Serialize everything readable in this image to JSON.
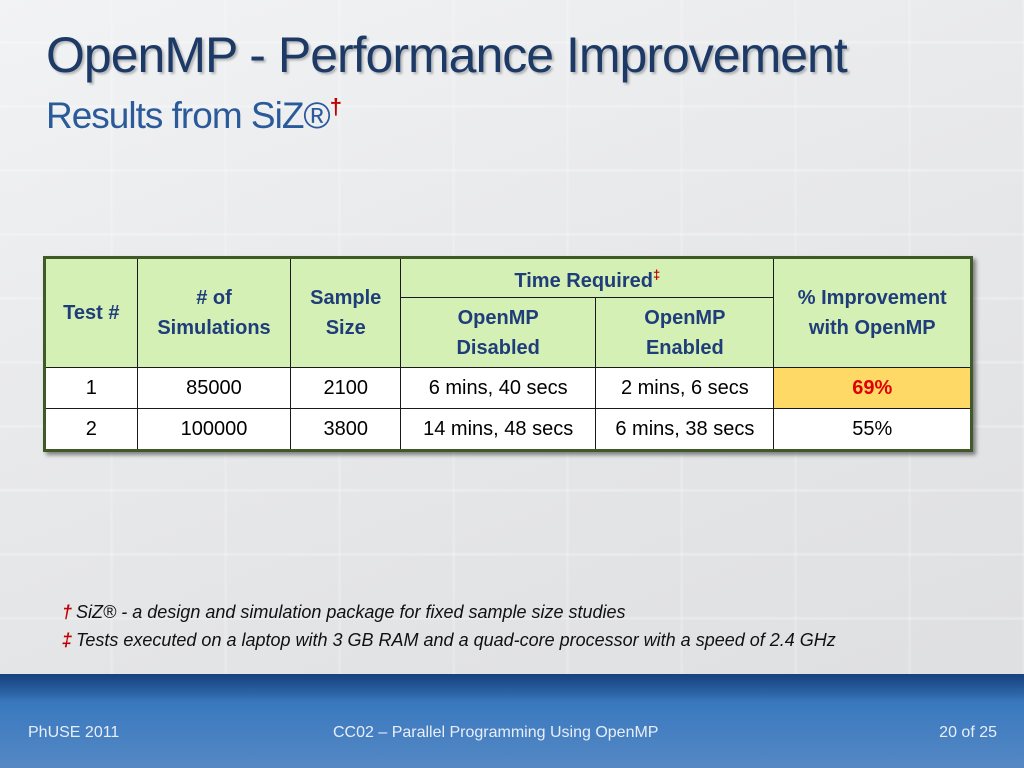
{
  "slide": {
    "title": "OpenMP - Performance Improvement",
    "subtitle": "Results from SiZ®",
    "subtitle_mark": "†"
  },
  "table": {
    "headers": {
      "test": "Test #",
      "simulations_line1": "# of",
      "simulations_line2": "Simulations",
      "sample_line1": "Sample",
      "sample_line2": "Size",
      "time_required": "Time Required",
      "time_required_mark": "‡",
      "disabled_line1": "OpenMP",
      "disabled_line2": "Disabled",
      "enabled_line1": "OpenMP",
      "enabled_line2": "Enabled",
      "improvement_line1": "% Improvement",
      "improvement_line2": "with OpenMP"
    },
    "rows": [
      {
        "test": "1",
        "simulations": "85000",
        "sample": "2100",
        "disabled": "6 mins, 40 secs",
        "enabled": "2 mins, 6 secs",
        "improvement": "69%"
      },
      {
        "test": "2",
        "simulations": "100000",
        "sample": "3800",
        "disabled": "14 mins, 48 secs",
        "enabled": "6 mins, 38 secs",
        "improvement": "55%"
      }
    ]
  },
  "footnotes": [
    {
      "mark": "†",
      "text": "SiZ® - a design and simulation package for fixed sample size studies"
    },
    {
      "mark": "‡",
      "text": "Tests executed on a laptop with 3 GB RAM and a quad-core processor with a speed of 2.4 GHz"
    }
  ],
  "footer": {
    "left": "PhUSE 2011",
    "center": "CC02 – Parallel Programming Using OpenMP",
    "right": "20 of 25"
  },
  "colors": {
    "title": "#1d3a66",
    "subtitle": "#2a5a9a",
    "header_fill": "#d4f0b4",
    "highlight_fill": "#ffd966",
    "highlight_text": "#e00000",
    "footer": "#3d7bc0"
  }
}
